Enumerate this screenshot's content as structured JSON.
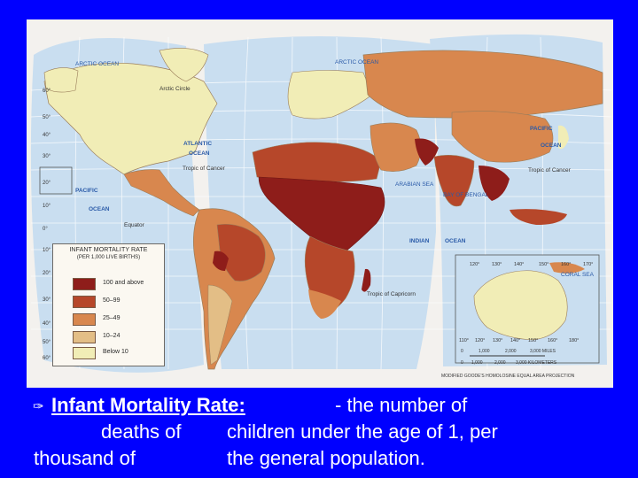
{
  "map": {
    "legend": {
      "title": "INFANT MORTALITY RATE",
      "subtitle": "(PER 1,000 LIVE BIRTHS)",
      "classes": [
        {
          "label": "100 and above",
          "color": "#8e1d1a"
        },
        {
          "label": "50–99",
          "color": "#b6472a"
        },
        {
          "label": "25–49",
          "color": "#d8874e"
        },
        {
          "label": "10–24",
          "color": "#e3be86"
        },
        {
          "label": "Below 10",
          "color": "#f1edb6"
        }
      ]
    },
    "labels": {
      "arctic_ocean_1": "ARCTIC OCEAN",
      "arctic_ocean_2": "ARCTIC OCEAN",
      "arctic_circle": "Arctic Circle",
      "atlantic": "ATLANTIC",
      "atlantic_ocean": "OCEAN",
      "pacific_w": "PACIFIC",
      "pacific_w_ocean": "OCEAN",
      "pacific_e": "PACIFIC",
      "pacific_e_ocean": "OCEAN",
      "tropic_cancer_w": "Tropic of Cancer",
      "tropic_cancer_e": "Tropic of Cancer",
      "equator": "Equator",
      "arabian_sea": "ARABIAN SEA",
      "bay_of_bengal": "BAY OF BENGAL",
      "indian": "INDIAN",
      "indian_ocean": "OCEAN",
      "tropic_capricorn": "Tropic of Capricorn",
      "coral_sea": "CORAL SEA"
    },
    "scale": {
      "miles_ticks": [
        "0",
        "1,000",
        "2,000",
        "3,000 MILES"
      ],
      "km_ticks": [
        "0",
        "1,000",
        "2,000",
        "3,000 KILOMETERS"
      ],
      "projection": "MODIFIED GOODE'S HOMOLOSINE EQUAL AREA PROJECTION"
    },
    "left_lat_ticks": [
      "60°",
      "50°",
      "40°",
      "30°",
      "20°",
      "10°",
      "0°",
      "10°",
      "20°",
      "30°",
      "40°",
      "50°",
      "60°"
    ],
    "inset_ticks_top": [
      "120°",
      "130°",
      "140°",
      "150°",
      "160°",
      "170°"
    ],
    "inset_ticks_bottom": [
      "110°",
      "120°",
      "130°",
      "140°",
      "150°",
      "160°",
      "180°"
    ]
  },
  "caption": {
    "bullet": "✑",
    "term": "Infant Mortality Rate:",
    "line1_rest": "- the number of",
    "line2_a": "deaths of",
    "line2_b": "children under the age of 1, per",
    "line3_a": "thousand of",
    "line3_b": "the general population."
  }
}
